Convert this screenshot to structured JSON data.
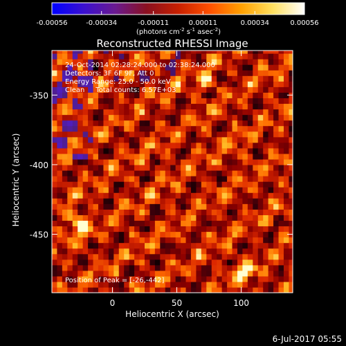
{
  "colorbar": {
    "ticks": [
      "-0.00056",
      "-0.00034",
      "-0.00011",
      "0.00011",
      "0.00034",
      "0.00056"
    ],
    "range": [
      -0.00056,
      0.00056
    ],
    "units_prefix": "(photons cm",
    "units_exp1": "-2",
    "units_mid": " s",
    "units_exp2": "-1",
    "units_suffix": " asec",
    "units_exp3": "-2",
    "units_close": ")",
    "stops": [
      "#0000ff",
      "#3a10d0",
      "#6a1a90",
      "#8a1020",
      "#c82000",
      "#ff5000",
      "#ffa000",
      "#ffe060",
      "#ffffff"
    ]
  },
  "chart_data": {
    "type": "heatmap",
    "title": "Reconstructed RHESSI Image",
    "xlabel": "Heliocentric X (arcsec)",
    "ylabel": "Heliocentric Y (arcsec)",
    "xlim": [
      -47,
      140
    ],
    "ylim": [
      -492,
      -318
    ],
    "xticks": [
      0,
      50,
      100
    ],
    "yticks": [
      -350,
      -400,
      -450
    ],
    "peak_position": [
      -26,
      -442
    ],
    "cell_size_arcsec": 4,
    "annotations": [
      "24-Oct-2014 02:28:24.000 to 02:38:24.000",
      "Detectors: 3F 6F 9F, Att 0",
      "Energy Range: 25.0 - 50.0 keV",
      "Clean     Total counts: 6.57E+03"
    ],
    "peak_label": "Position of Peak = [-26,-442]"
  },
  "footer": {
    "date": "6-Jul-2017 05:55"
  }
}
